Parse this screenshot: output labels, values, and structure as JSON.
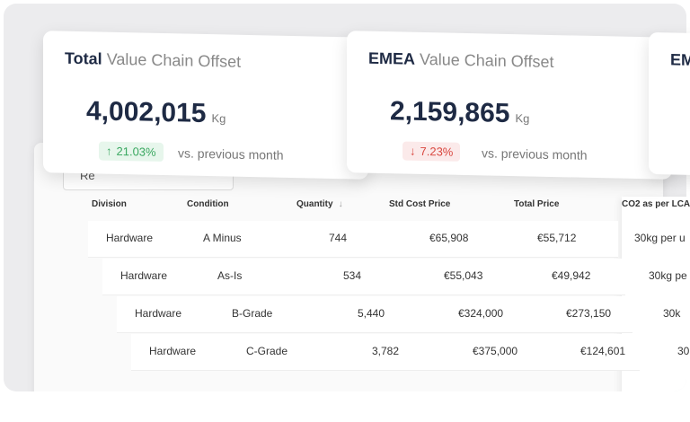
{
  "cards": [
    {
      "title_bold": "Total",
      "title_rest": "Value Chain Offset",
      "value": "4,002,015",
      "unit": "Kg",
      "change": "21.03%",
      "direction": "up",
      "change_note": "vs. previous month"
    },
    {
      "title_bold": "EMEA",
      "title_rest": "Value Chain Offset",
      "value": "2,159,865",
      "unit": "Kg",
      "change": "7.23%",
      "direction": "down",
      "change_note": "vs. previous month"
    },
    {
      "title_bold": "EM"
    }
  ],
  "filter": "Re",
  "table": {
    "headers": [
      "Division",
      "Condition",
      "Quantity",
      "Std Cost  Price",
      "Total Price",
      "CO2 as per LCA"
    ],
    "rows": [
      [
        "Hardware",
        "A Minus",
        "744",
        "€65,908",
        "€55,712",
        "30kg per u"
      ],
      [
        "Hardware",
        "As-Is",
        "534",
        "€55,043",
        "€49,942",
        "30kg pe"
      ],
      [
        "Hardware",
        "B-Grade",
        "5,440",
        "€324,000",
        "€273,150",
        "30k"
      ],
      [
        "Hardware",
        "C-Grade",
        "3,782",
        "€375,000",
        "€124,601",
        "30"
      ]
    ]
  }
}
